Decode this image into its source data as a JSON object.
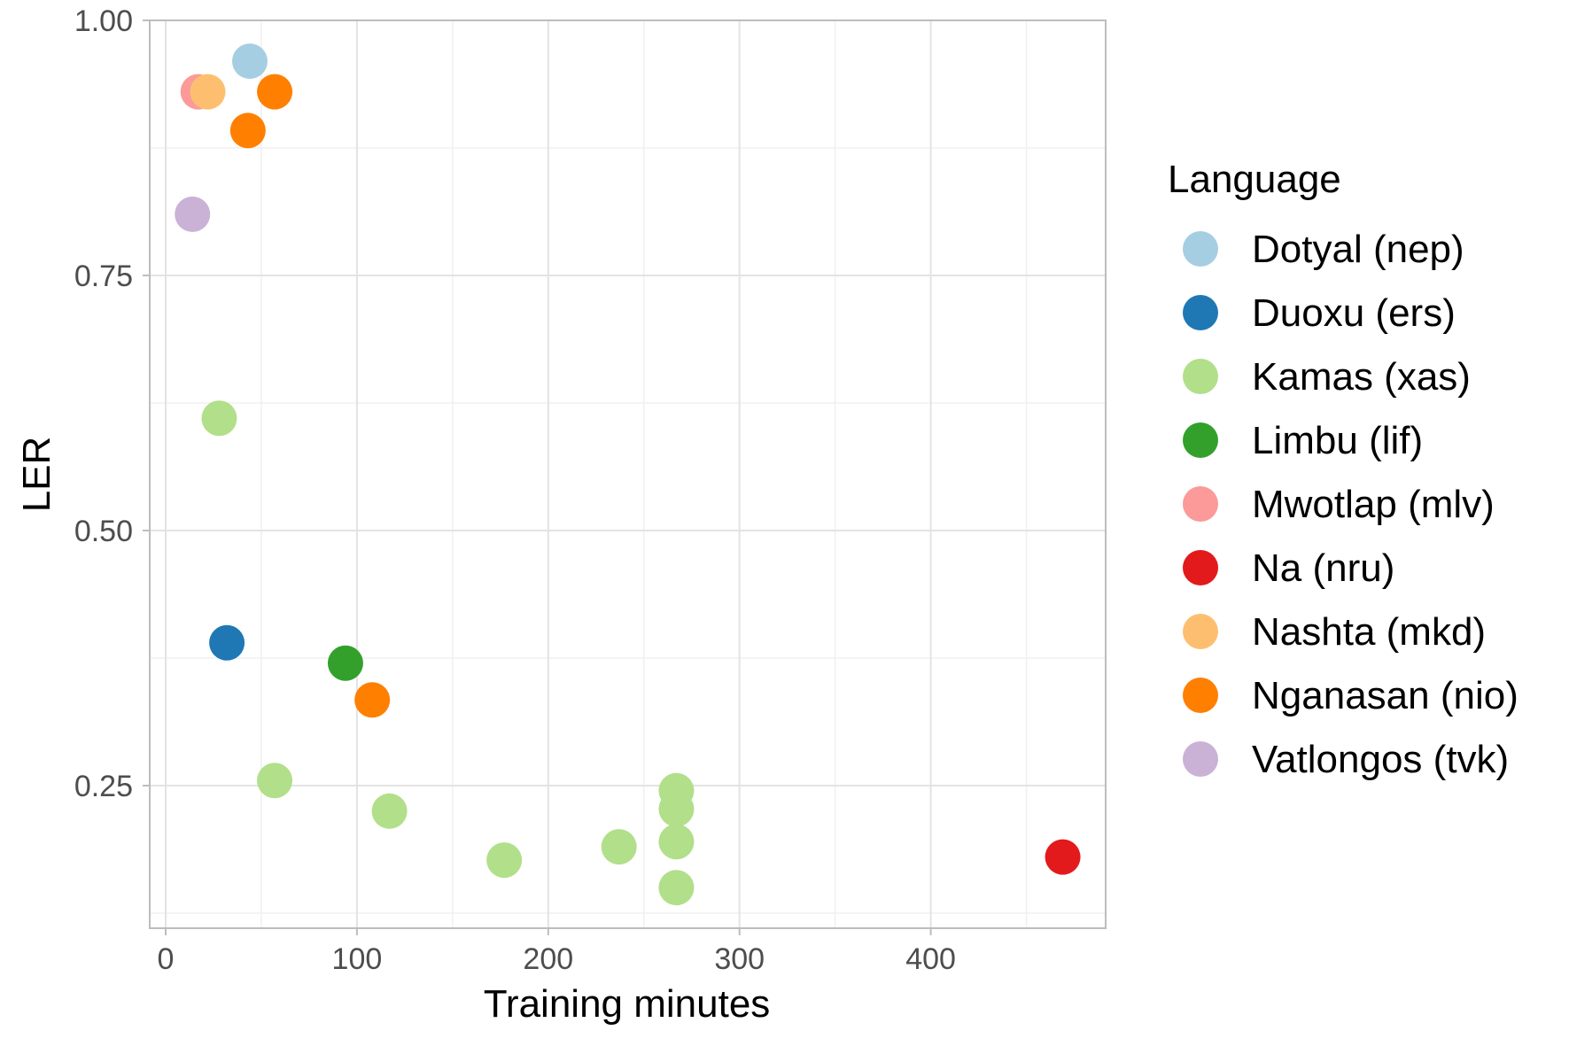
{
  "chart_data": {
    "type": "scatter",
    "title": "",
    "xlabel": "Training minutes",
    "ylabel": "LER",
    "xlim": [
      -8,
      490
    ],
    "ylim": [
      0.1,
      1.0
    ],
    "xticks": [
      0,
      100,
      200,
      300,
      400
    ],
    "xtick_labels": [
      "0",
      "100",
      "200",
      "300",
      "400"
    ],
    "yticks": [
      0.25,
      0.5,
      0.75,
      1.0
    ],
    "ytick_labels": [
      "0.25",
      "0.50",
      "0.75",
      "1.00"
    ],
    "grid": true,
    "legend": {
      "title": "Language",
      "position": "right"
    },
    "series": [
      {
        "name": "Dotyal (nep)",
        "color": "#A6CEE3",
        "points": [
          {
            "x": 44,
            "y": 0.96
          }
        ]
      },
      {
        "name": "Duoxu (ers)",
        "color": "#1F78B4",
        "points": [
          {
            "x": 32,
            "y": 0.39
          }
        ]
      },
      {
        "name": "Kamas (xas)",
        "color": "#B2DF8A",
        "points": [
          {
            "x": 28,
            "y": 0.61
          },
          {
            "x": 57,
            "y": 0.255
          },
          {
            "x": 117,
            "y": 0.225
          },
          {
            "x": 177,
            "y": 0.177
          },
          {
            "x": 237,
            "y": 0.19
          },
          {
            "x": 267,
            "y": 0.245
          },
          {
            "x": 267,
            "y": 0.227
          },
          {
            "x": 267,
            "y": 0.195
          },
          {
            "x": 267,
            "y": 0.15
          }
        ]
      },
      {
        "name": "Limbu (lif)",
        "color": "#33A02C",
        "points": [
          {
            "x": 94,
            "y": 0.37
          }
        ]
      },
      {
        "name": "Mwotlap (mlv)",
        "color": "#FB9A99",
        "points": [
          {
            "x": 17,
            "y": 0.93
          }
        ]
      },
      {
        "name": "Na (nru)",
        "color": "#E31A1C",
        "points": [
          {
            "x": 469,
            "y": 0.18
          }
        ]
      },
      {
        "name": "Nashta (mkd)",
        "color": "#FDBF6F",
        "points": [
          {
            "x": 22,
            "y": 0.93
          }
        ]
      },
      {
        "name": "Nganasan (nio)",
        "color": "#FF7F00",
        "points": [
          {
            "x": 57,
            "y": 0.93
          },
          {
            "x": 43,
            "y": 0.892
          },
          {
            "x": 108,
            "y": 0.334
          }
        ]
      },
      {
        "name": "Vatlongos (tvk)",
        "color": "#CAB2D6",
        "points": [
          {
            "x": 14,
            "y": 0.81
          }
        ]
      }
    ]
  }
}
